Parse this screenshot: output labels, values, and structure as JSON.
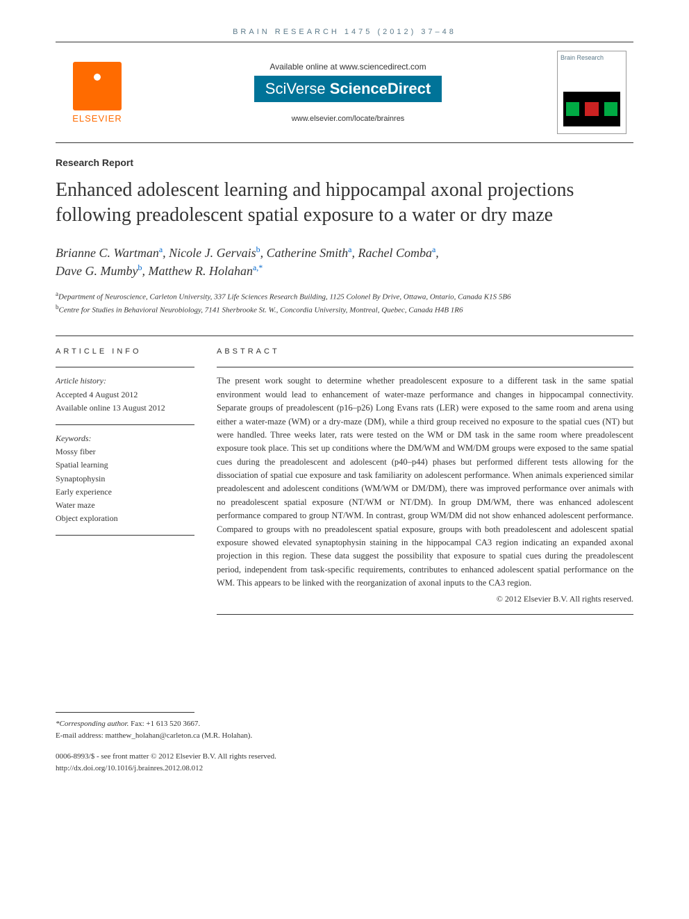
{
  "journal_header": "BRAIN RESEARCH 1475 (2012) 37–48",
  "banner": {
    "elsevier_label": "ELSEVIER",
    "available_online": "Available online at www.sciencedirect.com",
    "platform_prefix": "SciVerse ",
    "platform_name": "ScienceDirect",
    "locate_url": "www.elsevier.com/locate/brainres",
    "cover_title": "Brain Research"
  },
  "article_type": "Research Report",
  "title": "Enhanced adolescent learning and hippocampal axonal projections following preadolescent spatial exposure to a water or dry maze",
  "authors": [
    {
      "name": "Brianne C. Wartman",
      "aff": "a"
    },
    {
      "name": "Nicole J. Gervais",
      "aff": "b"
    },
    {
      "name": "Catherine Smith",
      "aff": "a"
    },
    {
      "name": "Rachel Comba",
      "aff": "a"
    },
    {
      "name": "Dave G. Mumby",
      "aff": "b"
    },
    {
      "name": "Matthew R. Holahan",
      "aff": "a,*"
    }
  ],
  "affiliations": {
    "a": "Department of Neuroscience, Carleton University, 337 Life Sciences Research Building, 1125 Colonel By Drive, Ottawa, Ontario, Canada K1S 5B6",
    "b": "Centre for Studies in Behavioral Neurobiology, 7141 Sherbrooke St. W., Concordia University, Montreal, Quebec, Canada H4B 1R6"
  },
  "article_info": {
    "heading": "ARTICLE INFO",
    "history_label": "Article history:",
    "accepted": "Accepted 4 August 2012",
    "online": "Available online 13 August 2012",
    "keywords_label": "Keywords:",
    "keywords": [
      "Mossy fiber",
      "Spatial learning",
      "Synaptophysin",
      "Early experience",
      "Water maze",
      "Object exploration"
    ]
  },
  "abstract": {
    "heading": "ABSTRACT",
    "text": "The present work sought to determine whether preadolescent exposure to a different task in the same spatial environment would lead to enhancement of water-maze performance and changes in hippocampal connectivity. Separate groups of preadolescent (p16–p26) Long Evans rats (LER) were exposed to the same room and arena using either a water-maze (WM) or a dry-maze (DM), while a third group received no exposure to the spatial cues (NT) but were handled. Three weeks later, rats were tested on the WM or DM task in the same room where preadolescent exposure took place. This set up conditions where the DM/WM and WM/DM groups were exposed to the same spatial cues during the preadolescent and adolescent (p40–p44) phases but performed different tests allowing for the dissociation of spatial cue exposure and task familiarity on adolescent performance. When animals experienced similar preadolescent and adolescent conditions (WM/WM or DM/DM), there was improved performance over animals with no preadolescent spatial exposure (NT/WM or NT/DM). In group DM/WM, there was enhanced adolescent performance compared to group NT/WM. In contrast, group WM/DM did not show enhanced adolescent performance. Compared to groups with no preadolescent spatial exposure, groups with both preadolescent and adolescent spatial exposure showed elevated synaptophysin staining in the hippocampal CA3 region indicating an expanded axonal projection in this region. These data suggest the possibility that exposure to spatial cues during the preadolescent period, independent from task-specific requirements, contributes to enhanced adolescent spatial performance on the WM. This appears to be linked with the reorganization of axonal inputs to the CA3 region.",
    "copyright": "© 2012 Elsevier B.V. All rights reserved."
  },
  "footer": {
    "corresponding_label": "*Corresponding author.",
    "corresponding_fax": " Fax: +1 613 520 3667.",
    "email_label": "E-mail address: ",
    "email": "matthew_holahan@carleton.ca",
    "email_attrib": " (M.R. Holahan).",
    "issn_line": "0006-8993/$ - see front matter © 2012 Elsevier B.V. All rights reserved.",
    "doi": "http://dx.doi.org/10.1016/j.brainres.2012.08.012"
  },
  "colors": {
    "elsevier_orange": "#ff6b00",
    "sciverse_blue": "#007398",
    "link_blue": "#0066cc",
    "text": "#333333",
    "header_gray": "#5c7a8a"
  },
  "typography": {
    "title_fontsize": 28,
    "author_fontsize": 18,
    "body_fontsize": 12.5,
    "heading_letterspacing": 4
  }
}
